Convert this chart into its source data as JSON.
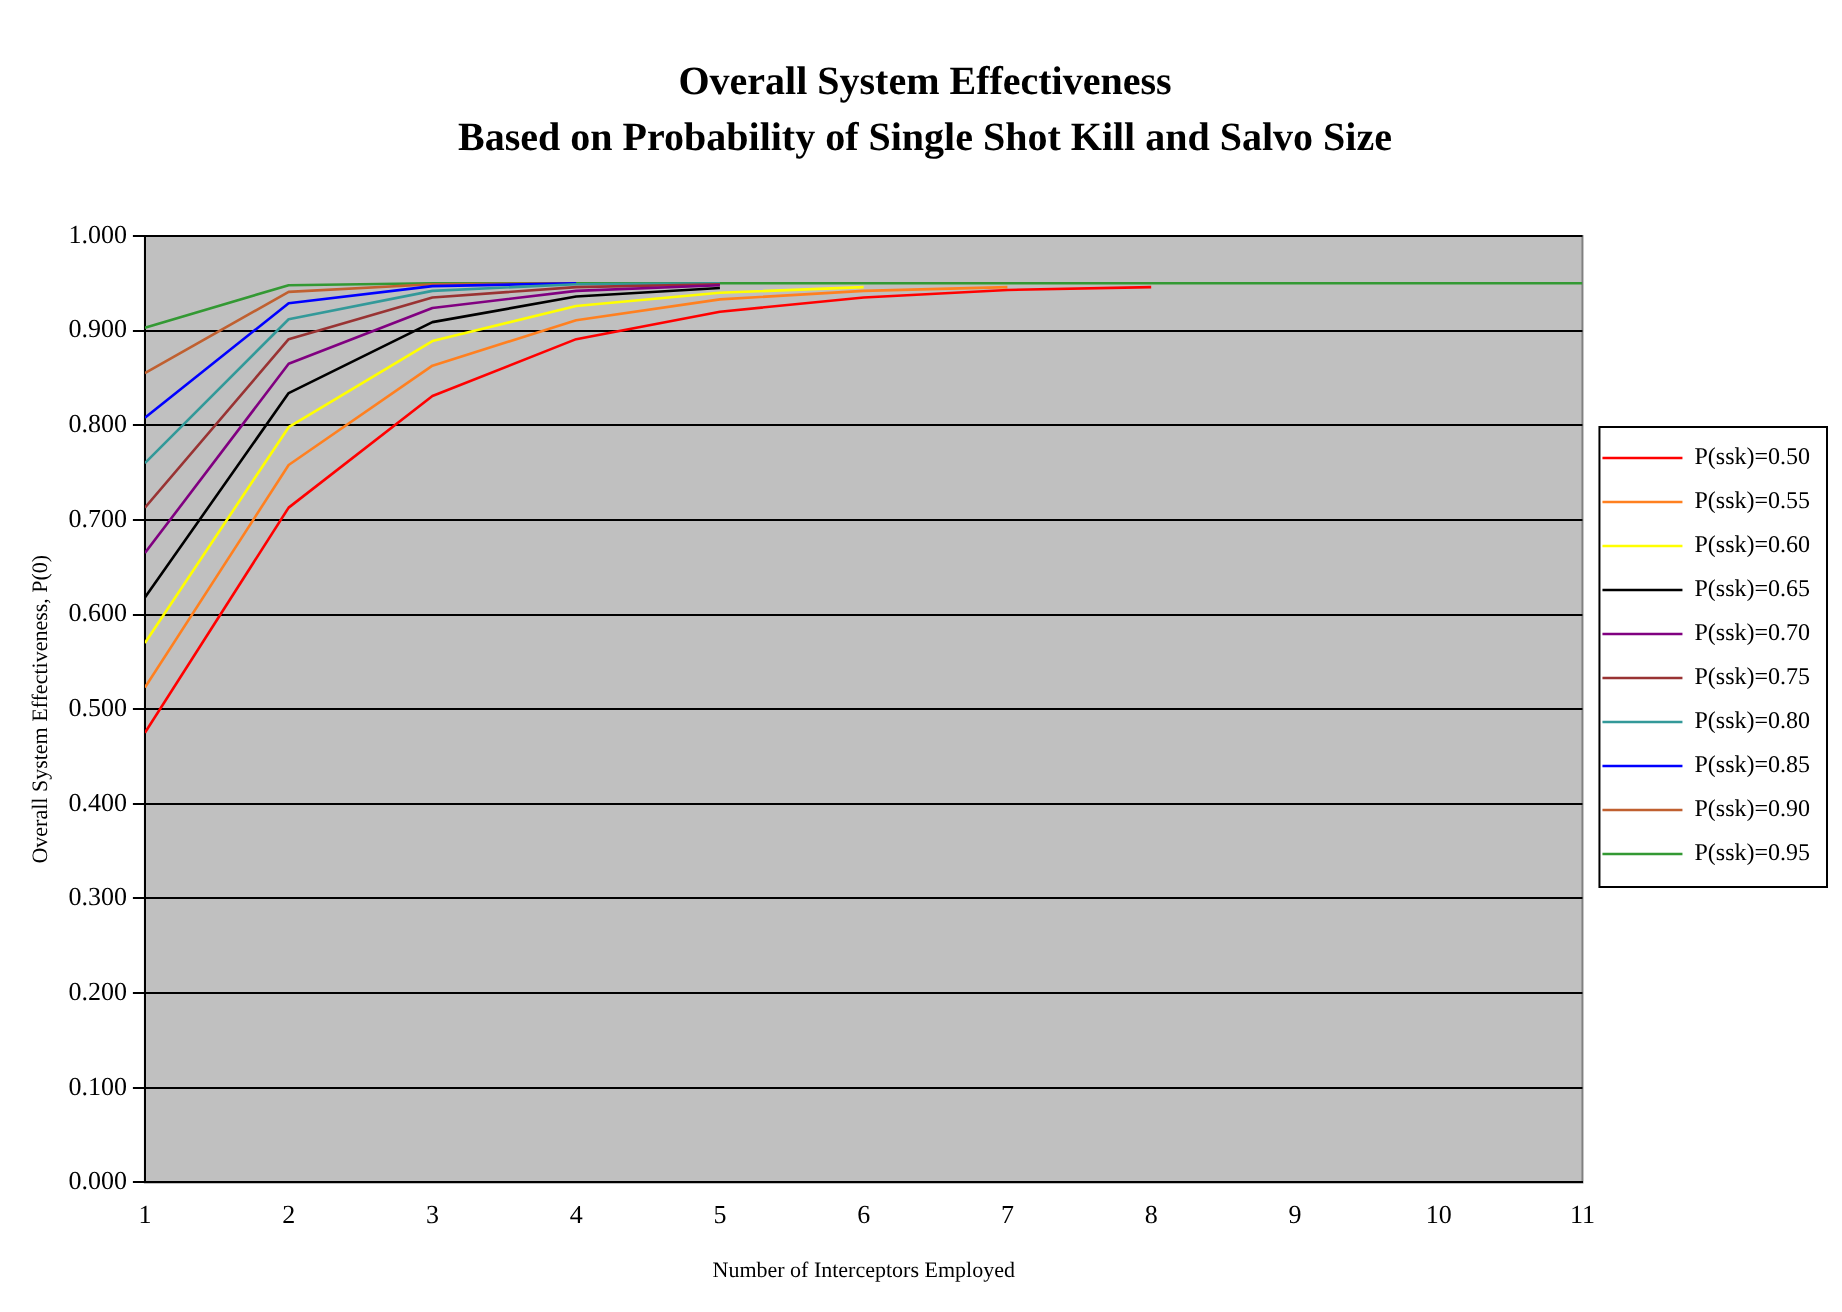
{
  "chart_data": {
    "type": "line",
    "title": "Overall System Effectiveness",
    "subtitle": "Based on Probability of Single Shot Kill and Salvo Size",
    "xlabel": "Number of Interceptors Employed",
    "ylabel": "Overall System Effectiveness, P(0)",
    "x": [
      1,
      2,
      3,
      4,
      5,
      6,
      7,
      8,
      9,
      10,
      11
    ],
    "xlim": [
      1,
      11
    ],
    "xticks": [
      1,
      2,
      3,
      4,
      5,
      6,
      7,
      8,
      9,
      10,
      11
    ],
    "ylim": [
      0,
      1
    ],
    "yticks": [
      {
        "value": 0,
        "label": "0.000"
      },
      {
        "value": 0.1,
        "label": "0.100"
      },
      {
        "value": 0.2,
        "label": "0.200"
      },
      {
        "value": 0.3,
        "label": "0.300"
      },
      {
        "value": 0.4,
        "label": "0.400"
      },
      {
        "value": 0.5,
        "label": "0.500"
      },
      {
        "value": 0.6,
        "label": "0.600"
      },
      {
        "value": 0.7,
        "label": "0.700"
      },
      {
        "value": 0.8,
        "label": "0.800"
      },
      {
        "value": 0.9,
        "label": "0.900"
      },
      {
        "value": 1,
        "label": "1.000"
      }
    ],
    "grid": "y",
    "legend": "right",
    "marker": "none",
    "line_style": "solid",
    "series": [
      {
        "name": "P(ssk)=0.50",
        "color": "#ff0000",
        "values": [
          0.475,
          0.713,
          0.831,
          0.891,
          0.92,
          0.935,
          0.943,
          0.946,
          null,
          null,
          null
        ]
      },
      {
        "name": "P(ssk)=0.55",
        "color": "#ff8020",
        "values": [
          0.523,
          0.758,
          0.863,
          0.911,
          0.933,
          0.942,
          0.946,
          null,
          null,
          null,
          null
        ]
      },
      {
        "name": "P(ssk)=0.60",
        "color": "#ffff00",
        "values": [
          0.57,
          0.798,
          0.889,
          0.926,
          0.94,
          0.946,
          null,
          null,
          null,
          null,
          null
        ]
      },
      {
        "name": "P(ssk)=0.65",
        "color": "#000000",
        "values": [
          0.618,
          0.834,
          0.909,
          0.936,
          0.945,
          null,
          null,
          null,
          null,
          null,
          null
        ]
      },
      {
        "name": "P(ssk)=0.70",
        "color": "#800080",
        "values": [
          0.665,
          0.865,
          0.924,
          0.942,
          0.948,
          null,
          null,
          null,
          null,
          null,
          null
        ]
      },
      {
        "name": "P(ssk)=0.75",
        "color": "#993333",
        "values": [
          0.713,
          0.891,
          0.935,
          0.946,
          0.949,
          null,
          null,
          null,
          null,
          null,
          null
        ]
      },
      {
        "name": "P(ssk)=0.80",
        "color": "#339999",
        "values": [
          0.76,
          0.912,
          0.942,
          0.949,
          0.95,
          null,
          null,
          null,
          null,
          null,
          null
        ]
      },
      {
        "name": "P(ssk)=0.85",
        "color": "#0000ff",
        "values": [
          0.808,
          0.929,
          0.947,
          0.95,
          null,
          null,
          null,
          null,
          null,
          null,
          null
        ]
      },
      {
        "name": "P(ssk)=0.90",
        "color": "#c06030",
        "values": [
          0.855,
          0.941,
          0.949,
          0.95,
          null,
          null,
          null,
          null,
          null,
          null,
          null
        ]
      },
      {
        "name": "P(ssk)=0.95",
        "color": "#339933",
        "values": [
          0.903,
          0.948,
          0.95,
          0.95,
          0.95,
          0.95,
          0.95,
          0.95,
          0.95,
          0.95,
          0.95
        ]
      }
    ]
  }
}
